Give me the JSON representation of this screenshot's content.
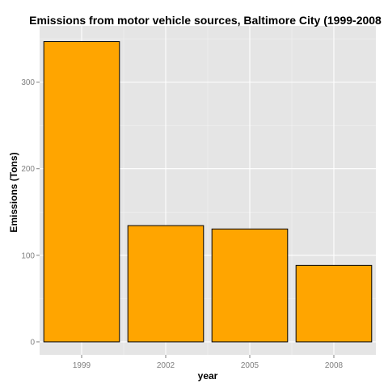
{
  "colors": {
    "bar_fill": "#FFA500",
    "bar_stroke": "#000000",
    "panel_background": "#E5E5E5",
    "grid_major": "#FFFFFF",
    "grid_minor": "#F2F2F2",
    "tick_text": "#7F7F7F"
  },
  "chart_data": {
    "type": "bar",
    "title": "Emissions from motor vehicle sources, Baltimore City (1999-2008",
    "xlabel": "year",
    "ylabel": "Emissions (Tons)",
    "categories": [
      "1999",
      "2002",
      "2005",
      "2008"
    ],
    "values": [
      346.8,
      134.3,
      130.4,
      88.3
    ],
    "ylim": [
      -15,
      365
    ],
    "yticks": [
      0,
      100,
      200,
      300
    ],
    "yminor": [
      50,
      150,
      250,
      350
    ],
    "grid": true,
    "legend": "none"
  }
}
